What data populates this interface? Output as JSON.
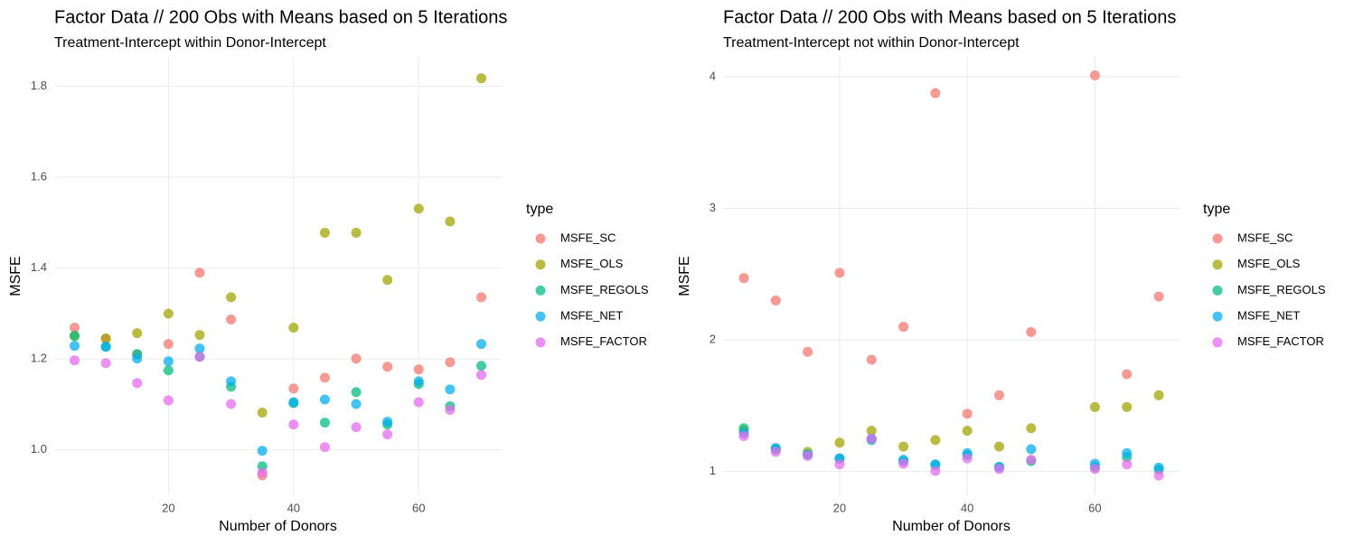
{
  "chart_data": [
    {
      "type": "scatter",
      "title": "Factor Data //  200  Obs with Means based on  5  Iterations",
      "subtitle": "Treatment-Intercept within Donor-Intercept",
      "x_label": "Number of Donors",
      "y_label": "MSFE",
      "legend_title": "type",
      "grid": true,
      "x": [
        5,
        10,
        15,
        20,
        25,
        30,
        35,
        40,
        45,
        50,
        55,
        60,
        65,
        70
      ],
      "xlim": [
        1.75,
        73.25
      ],
      "xticks": [
        20,
        40,
        60
      ],
      "ylim": [
        0.9,
        1.865
      ],
      "yticks": [
        {
          "value": 1,
          "label": "1.0"
        },
        1.2,
        1.4,
        1.6,
        1.8
      ],
      "series": [
        {
          "name": "MSFE_SC",
          "color": "#F8766D",
          "values": [
            1.269,
            1.245,
            1.21,
            1.233,
            1.39,
            1.287,
            0.944,
            1.135,
            1.159,
            1.201,
            1.183,
            1.177,
            1.193,
            1.336
          ]
        },
        {
          "name": "MSFE_OLS",
          "color": "#A3A500",
          "values": [
            1.251,
            1.245,
            1.257,
            1.3,
            1.253,
            1.336,
            1.082,
            1.269,
            1.478,
            1.478,
            1.374,
            1.531,
            1.503,
            1.818
          ]
        },
        {
          "name": "MSFE_REGOLS",
          "color": "#00BF7D",
          "values": [
            1.251,
            1.227,
            1.211,
            1.175,
            1.205,
            1.139,
            0.964,
            1.103,
            1.06,
            1.127,
            1.056,
            1.145,
            1.096,
            1.185
          ]
        },
        {
          "name": "MSFE_NET",
          "color": "#00B0F6",
          "values": [
            1.229,
            1.227,
            1.201,
            1.195,
            1.223,
            1.151,
            0.998,
            1.105,
            1.111,
            1.101,
            1.062,
            1.151,
            1.133,
            1.233
          ]
        },
        {
          "name": "MSFE_FACTOR",
          "color": "#E76BF3",
          "values": [
            1.197,
            1.191,
            1.147,
            1.109,
            1.205,
            1.101,
            0.95,
            1.056,
            1.006,
            1.05,
            1.034,
            1.105,
            1.088,
            1.165
          ]
        }
      ]
    },
    {
      "type": "scatter",
      "title": "Factor Data //  200  Obs with Means based on  5  Iterations",
      "subtitle": "Treatment-Intercept not within Donor-Intercept",
      "x_label": "Number of Donors",
      "y_label": "MSFE",
      "legend_title": "type",
      "grid": true,
      "x": [
        5,
        10,
        15,
        20,
        25,
        30,
        35,
        40,
        45,
        50,
        55,
        60,
        65,
        70
      ],
      "xlim": [
        1.75,
        73.25
      ],
      "xticks": [
        20,
        40,
        60
      ],
      "ylim": [
        0.82,
        4.15
      ],
      "yticks": [
        1,
        2,
        3,
        4
      ],
      "series": [
        {
          "name": "MSFE_SC",
          "color": "#F8766D",
          "values": [
            2.47,
            2.3,
            1.91,
            2.51,
            1.85,
            2.1,
            3.875,
            1.44,
            1.58,
            2.06,
            null,
            4.01,
            1.74,
            2.33
          ]
        },
        {
          "name": "MSFE_OLS",
          "color": "#A3A500",
          "values": [
            1.31,
            1.17,
            1.15,
            1.22,
            1.31,
            1.19,
            1.24,
            1.31,
            1.19,
            1.33,
            null,
            1.49,
            1.49,
            1.58
          ]
        },
        {
          "name": "MSFE_REGOLS",
          "color": "#00BF7D",
          "values": [
            1.33,
            1.17,
            1.13,
            1.1,
            1.24,
            1.08,
            1.05,
            1.125,
            1.035,
            1.08,
            null,
            1.035,
            1.11,
            1.015
          ]
        },
        {
          "name": "MSFE_NET",
          "color": "#00B0F6",
          "values": [
            1.29,
            1.18,
            1.13,
            1.1,
            1.25,
            1.09,
            1.055,
            1.14,
            1.035,
            1.17,
            null,
            1.06,
            1.14,
            1.03
          ]
        },
        {
          "name": "MSFE_FACTOR",
          "color": "#E76BF3",
          "values": [
            1.27,
            1.15,
            1.12,
            1.055,
            1.25,
            1.06,
            1.005,
            1.1,
            1.02,
            1.09,
            null,
            1.02,
            1.055,
            0.97
          ]
        }
      ]
    }
  ]
}
